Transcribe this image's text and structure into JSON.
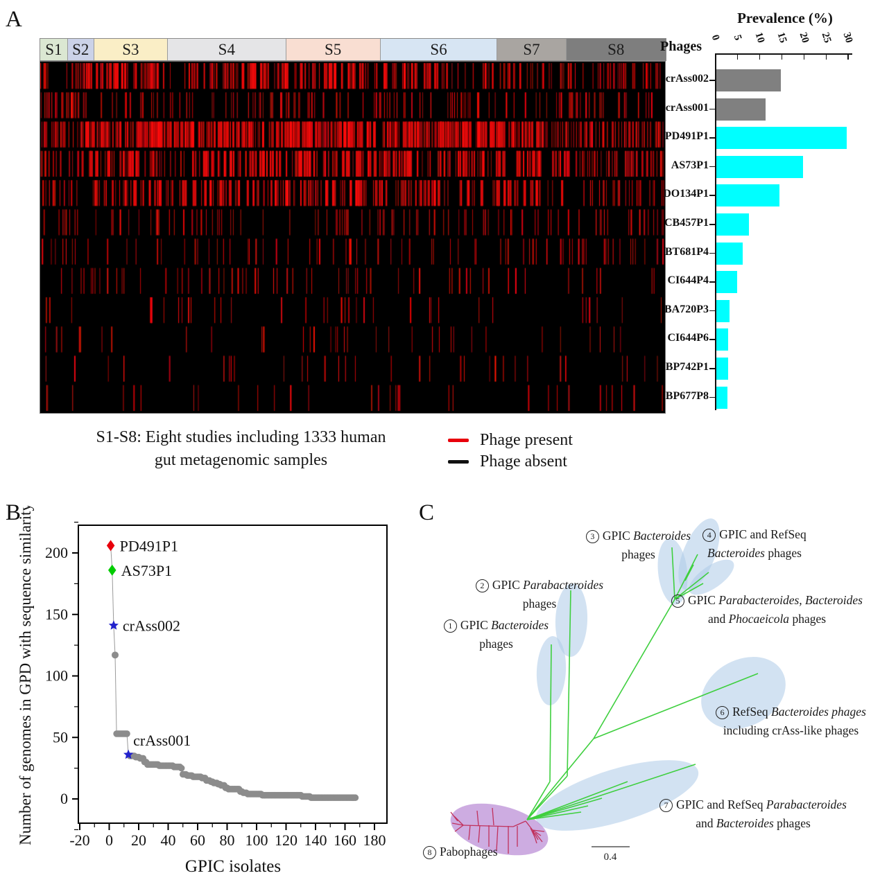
{
  "figure": {
    "panel_a_letter": "A",
    "panel_b_letter": "B",
    "panel_c_letter": "C"
  },
  "panel_a": {
    "studies": [
      {
        "id": "S1",
        "color": "#dbe7d2",
        "frac": 0.043
      },
      {
        "id": "S2",
        "color": "#cbd2e8",
        "frac": 0.042
      },
      {
        "id": "S3",
        "color": "#faeec6",
        "frac": 0.118
      },
      {
        "id": "S4",
        "color": "#e5e5e7",
        "frac": 0.189
      },
      {
        "id": "S5",
        "color": "#f9ded2",
        "frac": 0.151
      },
      {
        "id": "S6",
        "color": "#d7e5f3",
        "frac": 0.187
      },
      {
        "id": "S7",
        "color": "#a9a5a1",
        "frac": 0.11
      },
      {
        "id": "S8",
        "color": "#7e7e7e",
        "frac": 0.16
      }
    ],
    "caption": {
      "line1": "S1-S8: Eight studies including 1333 human",
      "line2": "gut metagenomic samples"
    },
    "legend": {
      "present_label": "Phage present",
      "absent_label": "Phage absent",
      "present_color": "#e8000b",
      "absent_color": "#111111"
    },
    "bars": {
      "col_header": "Phages",
      "axis_title": "Prevalence (%)"
    }
  },
  "panel_b": {
    "ylabel": "Number of genomes in GPD with sequence similarity",
    "xlabel": "GPIC isolates"
  },
  "panel_c": {
    "scale_label": "0.4",
    "clusters": [
      {
        "num": "1",
        "lines": [
          [
            [
              "GPIC ",
              0
            ],
            [
              "Bacteroides",
              1
            ]
          ],
          [
            [
              "phages",
              0
            ]
          ]
        ]
      },
      {
        "num": "2",
        "lines": [
          [
            [
              "GPIC ",
              0
            ],
            [
              "Parabacteroides",
              1
            ]
          ],
          [
            [
              "phages",
              0
            ]
          ]
        ]
      },
      {
        "num": "3",
        "lines": [
          [
            [
              "GPIC ",
              0
            ],
            [
              "Bacteroides",
              1
            ]
          ],
          [
            [
              "phages",
              0
            ]
          ]
        ]
      },
      {
        "num": "4",
        "lines": [
          [
            [
              "GPIC and RefSeq",
              0
            ]
          ],
          [
            [
              "Bacteroides",
              1
            ],
            [
              " phages",
              0
            ]
          ]
        ]
      },
      {
        "num": "5",
        "lines": [
          [
            [
              "GPIC ",
              0
            ],
            [
              "Parabacteroides, Bacteroides",
              1
            ]
          ],
          [
            [
              "and ",
              0
            ],
            [
              "Phocaeicola",
              1
            ],
            [
              " phages",
              0
            ]
          ]
        ]
      },
      {
        "num": "6",
        "lines": [
          [
            [
              "RefSeq ",
              0
            ],
            [
              "Bacteroides phages",
              1
            ]
          ],
          [
            [
              "including crAss-like phages",
              0
            ]
          ]
        ]
      },
      {
        "num": "7",
        "lines": [
          [
            [
              "GPIC and RefSeq ",
              0
            ],
            [
              "Parabacteroides",
              1
            ]
          ],
          [
            [
              "and ",
              0
            ],
            [
              "Bacteroides",
              1
            ],
            [
              " phages",
              0
            ]
          ]
        ]
      },
      {
        "num": "8",
        "lines": [
          [
            [
              "Pabophages",
              0
            ]
          ]
        ]
      }
    ]
  },
  "chart_data": [
    {
      "type": "bar",
      "title": "Prevalence (%)",
      "orientation": "horizontal",
      "categories": [
        "crAss002",
        "crAss001",
        "PD491P1",
        "AS73P1",
        "DO134P1",
        "CB457P1",
        "BT681P4",
        "CI644P4",
        "BA720P3",
        "CI644P6",
        "BP742P1",
        "BP677P8"
      ],
      "values": [
        14.6,
        11.2,
        29.5,
        19.6,
        14.2,
        7.3,
        5.9,
        4.7,
        2.9,
        2.6,
        2.6,
        2.5
      ],
      "colors": [
        "#808080",
        "#808080",
        "#00ffff",
        "#00ffff",
        "#00ffff",
        "#00ffff",
        "#00ffff",
        "#00ffff",
        "#00ffff",
        "#00ffff",
        "#00ffff",
        "#00ffff"
      ],
      "xlim": [
        0,
        30
      ],
      "ticks": [
        0,
        5,
        10,
        15,
        20,
        25,
        30
      ]
    },
    {
      "type": "scatter",
      "xlabel": "GPIC isolates",
      "ylabel": "Number of genomes in GPD with sequence similarity",
      "xlim": [
        -21,
        189
      ],
      "ylim": [
        -20,
        222
      ],
      "xticks": [
        -20,
        0,
        20,
        40,
        60,
        80,
        100,
        120,
        140,
        160,
        180
      ],
      "yticks": [
        0,
        50,
        100,
        150,
        200
      ],
      "named_points": [
        {
          "label": "PD491P1",
          "x": 1,
          "y": 206,
          "color": "#e8000b",
          "marker": "diamond"
        },
        {
          "label": "AS73P1",
          "x": 2,
          "y": 186,
          "color": "#00cc00",
          "marker": "diamond"
        },
        {
          "label": "crAss002",
          "x": 3,
          "y": 141,
          "color": "#2222cc",
          "marker": "star"
        },
        {
          "label": "",
          "x": 4,
          "y": 117,
          "color": "#8c8c8c",
          "marker": "circle"
        },
        {
          "label": "crAss001",
          "x": 13,
          "y": 36,
          "color": "#2222cc",
          "marker": "star"
        }
      ],
      "step_segments": [
        [
          5,
          12,
          53
        ],
        [
          14,
          17,
          35
        ],
        [
          18,
          20,
          34
        ],
        [
          21,
          23,
          33
        ],
        [
          24,
          25,
          30
        ],
        [
          26,
          33,
          28
        ],
        [
          34,
          43,
          27
        ],
        [
          44,
          48,
          26
        ],
        [
          49,
          49,
          25
        ],
        [
          50,
          52,
          20
        ],
        [
          53,
          56,
          19
        ],
        [
          57,
          62,
          18
        ],
        [
          63,
          65,
          17
        ],
        [
          66,
          68,
          15
        ],
        [
          69,
          70,
          14
        ],
        [
          71,
          73,
          13
        ],
        [
          74,
          75,
          12
        ],
        [
          76,
          78,
          11
        ],
        [
          79,
          80,
          9
        ],
        [
          81,
          88,
          8
        ],
        [
          89,
          90,
          6
        ],
        [
          91,
          93,
          5
        ],
        [
          94,
          103,
          4
        ],
        [
          104,
          130,
          3
        ],
        [
          131,
          136,
          2
        ],
        [
          137,
          167,
          1
        ]
      ]
    },
    {
      "type": "heatmap",
      "rows": [
        "crAss002",
        "crAss001",
        "PD491P1",
        "AS73P1",
        "DO134P1",
        "CB457P1",
        "BT681P4",
        "CI644P4",
        "BA720P3",
        "CI644P6",
        "BP742P1",
        "BP677P8"
      ],
      "columns": "1333 human gut metagenomic samples grouped in studies S1-S8",
      "present_color": "#cc0000",
      "absent_color": "#000000",
      "row_prevalence_pct": [
        14.6,
        11.2,
        29.5,
        19.6,
        14.2,
        7.3,
        5.9,
        4.7,
        2.9,
        2.6,
        2.6,
        2.5
      ]
    },
    {
      "type": "table",
      "title": "Unrooted phylogenetic tree clusters",
      "scale_bar": "0.4",
      "clusters": [
        "1 GPIC Bacteroides phages",
        "2 GPIC Parabacteroides phages",
        "3 GPIC Bacteroides phages",
        "4 GPIC and RefSeq Bacteroides phages",
        "5 GPIC Parabacteroides, Bacteroides and Phocaeicola phages",
        "6 RefSeq Bacteroides phages including crAss-like phages",
        "7 GPIC and RefSeq Parabacteroides and Bacteroides phages",
        "8 Pabophages"
      ]
    }
  ]
}
